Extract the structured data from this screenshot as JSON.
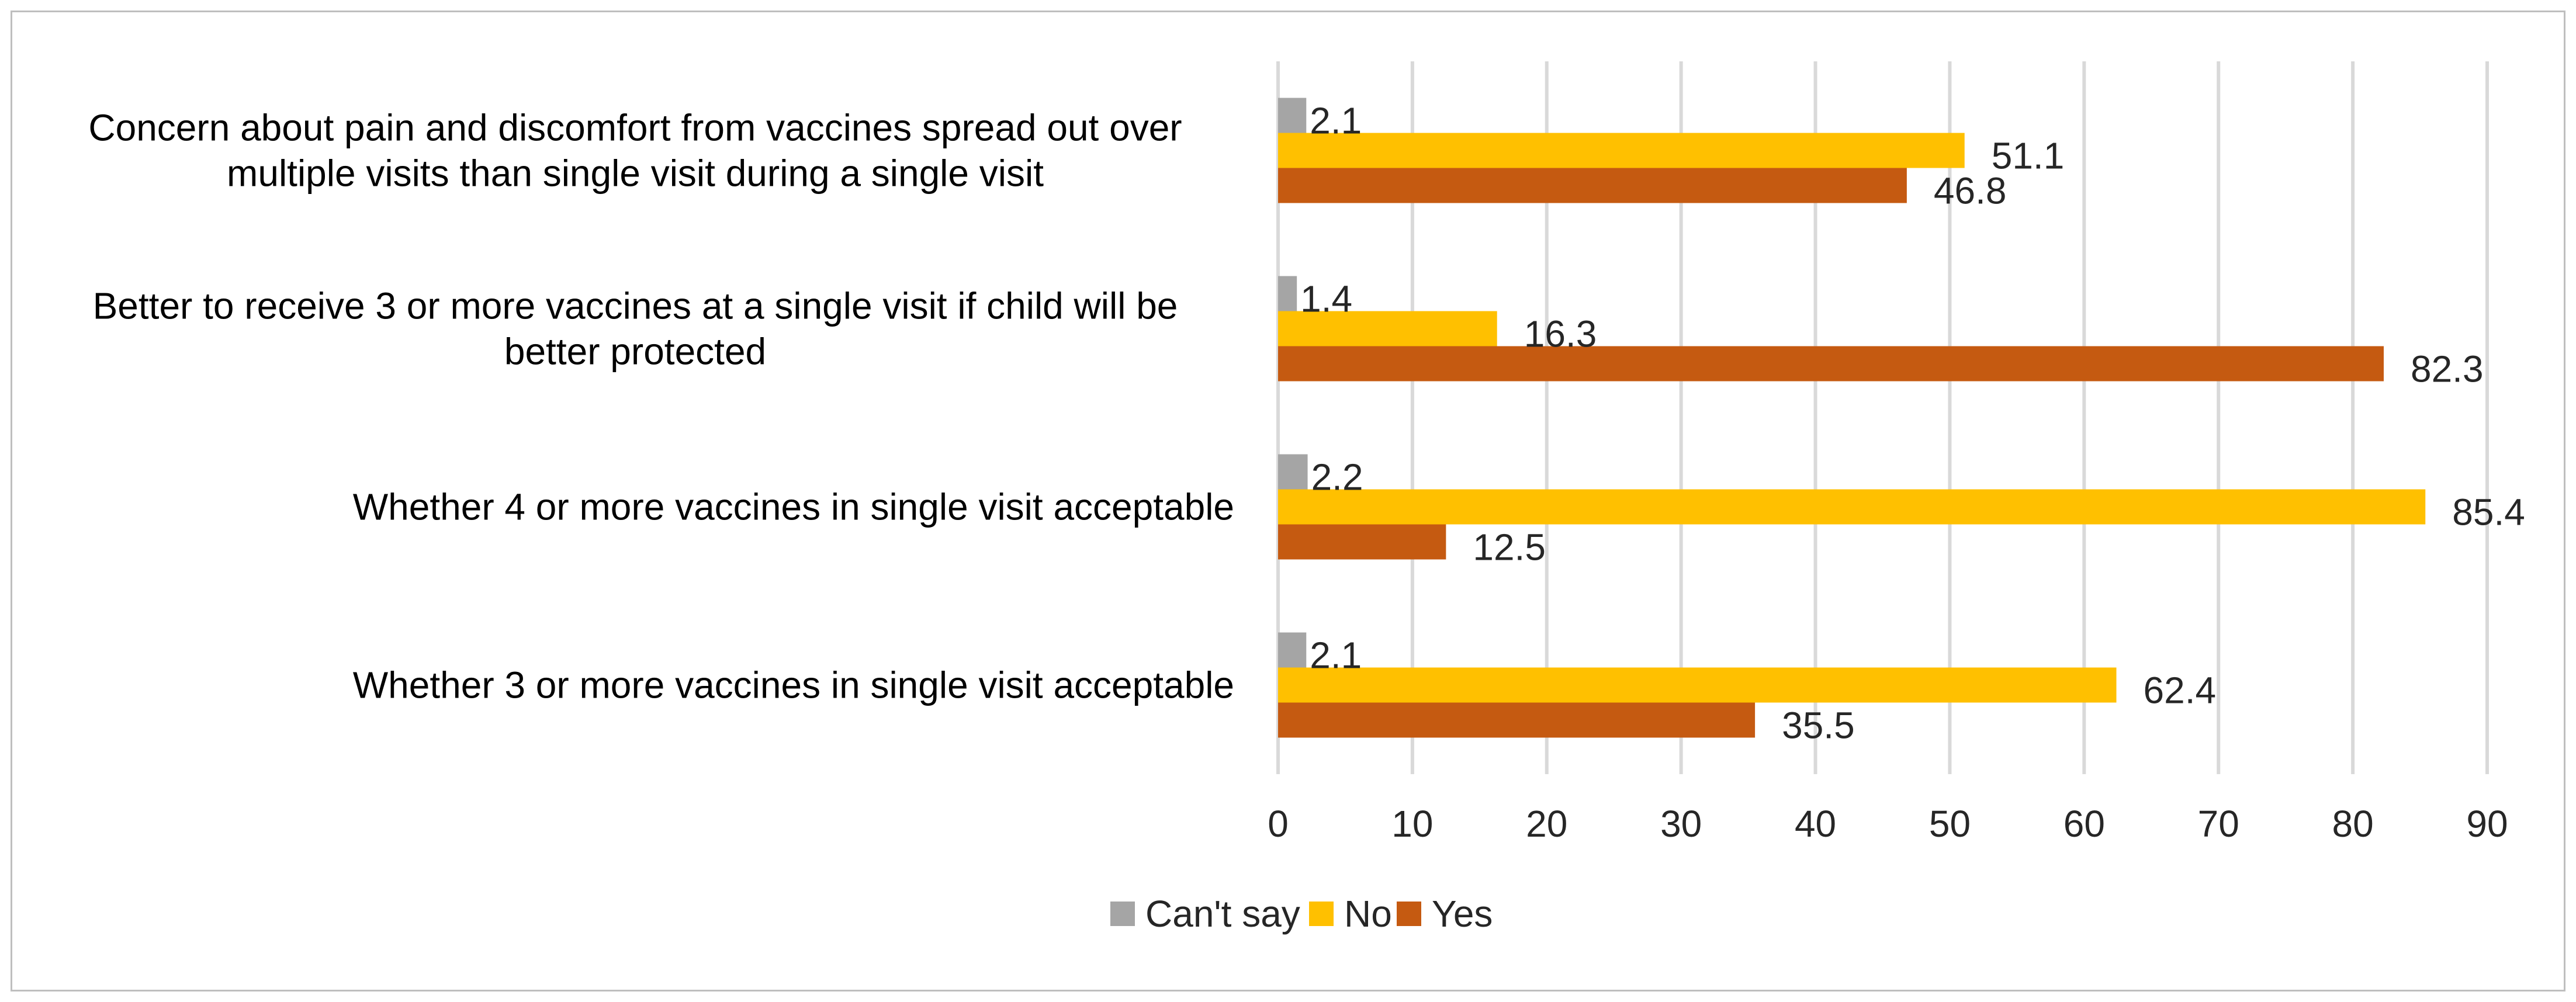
{
  "chart_data": {
    "type": "bar",
    "orientation": "horizontal",
    "categories": [
      [
        "Concern about  pain and discomfort from vaccines spread out over",
        "multiple visits than single visit during a single visit"
      ],
      [
        "Better to receive 3 or more  vaccines at a single visit if child will be",
        "better protected"
      ],
      [
        "Whether 4 or more vaccines in single visit acceptable"
      ],
      [
        "Whether 3 or more vaccines in single visit acceptable"
      ]
    ],
    "series": [
      {
        "name": "Can't say",
        "color": "#a5a5a5",
        "values": [
          2.1,
          1.4,
          2.2,
          2.1
        ],
        "labels": [
          "2.1",
          "1.4",
          "2.2",
          "2.1"
        ]
      },
      {
        "name": "No",
        "color": "#ffc000",
        "values": [
          51.1,
          16.3,
          85.4,
          62.4
        ],
        "labels": [
          "51.1",
          "16.3",
          "85.4",
          "62.4"
        ]
      },
      {
        "name": "Yes",
        "color": "#c55a11",
        "values": [
          46.8,
          82.3,
          12.5,
          35.5
        ],
        "labels": [
          "46.8",
          "82.3",
          "12.5",
          "35.5"
        ]
      }
    ],
    "xlim": [
      0,
      90
    ],
    "x_ticks": [
      0,
      10,
      20,
      30,
      40,
      50,
      60,
      70,
      80,
      90
    ],
    "x_tick_labels": [
      "0",
      "10",
      "20",
      "30",
      "40",
      "50",
      "60",
      "70",
      "80",
      "90"
    ],
    "grid": true,
    "legend_position": "bottom-center",
    "title": "",
    "xlabel": "",
    "ylabel": ""
  }
}
